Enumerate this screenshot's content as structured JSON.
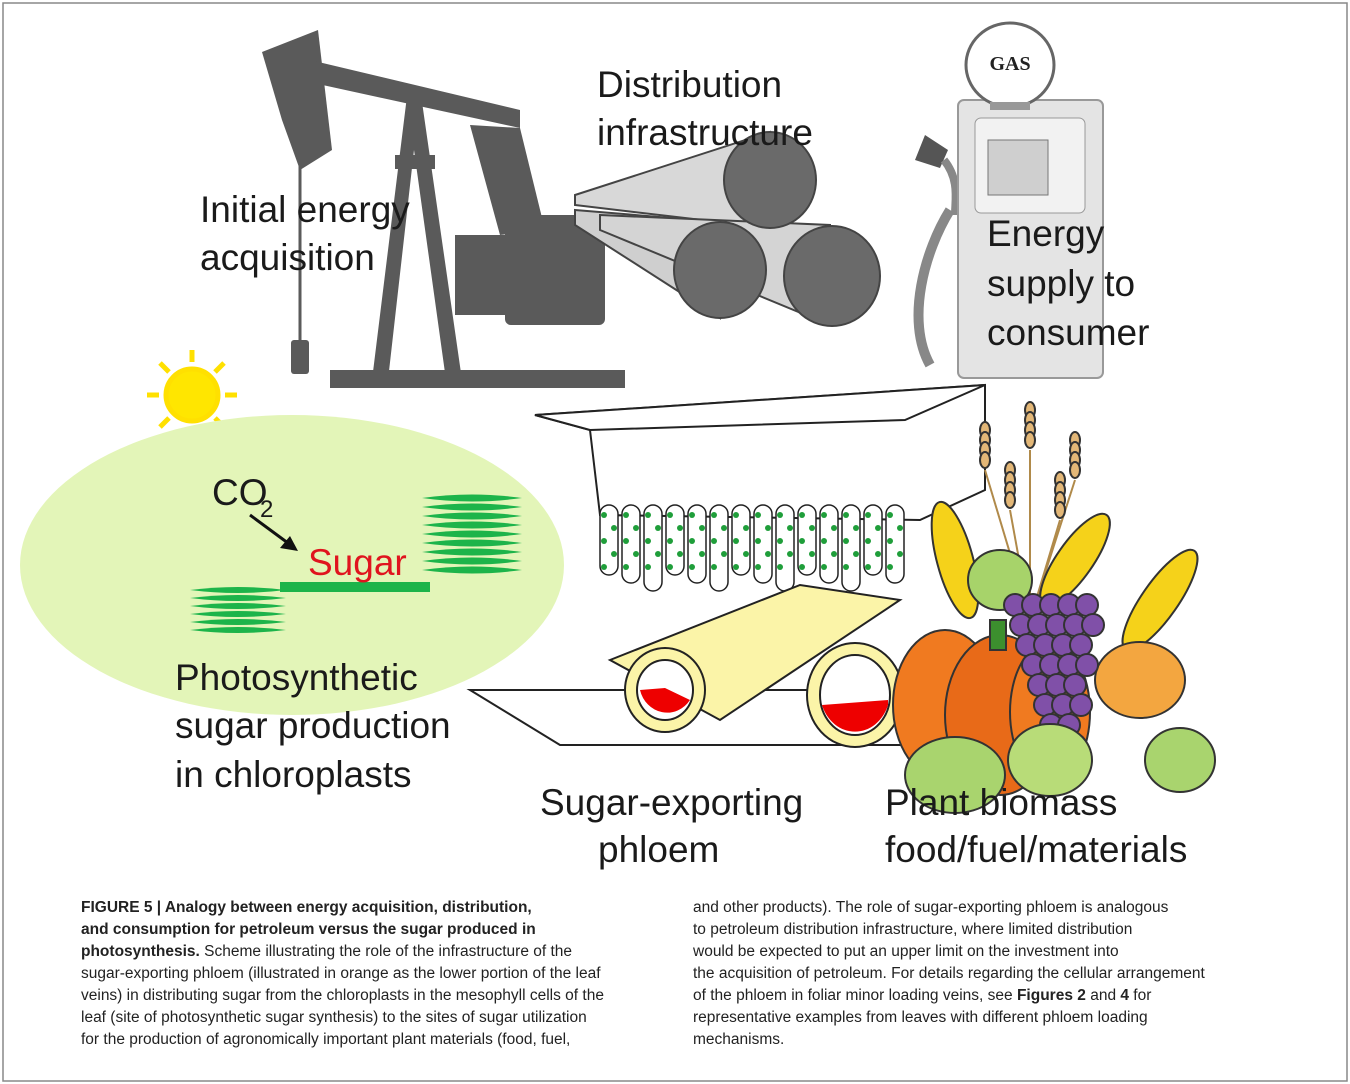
{
  "figure": {
    "gas_sign": "GAS",
    "distribution": [
      "Distribution",
      "infrastructure"
    ],
    "acquisition": [
      "Initial energy",
      "acquisition"
    ],
    "supply": [
      "Energy",
      "supply to",
      "consumer"
    ],
    "co2": {
      "main": "CO",
      "subscript": "2"
    },
    "sugar": "Sugar",
    "photosynthetic": [
      "Photosynthetic",
      "sugar production",
      "in chloroplasts"
    ],
    "phloem": [
      "Sugar-exporting",
      "phloem"
    ],
    "biomass": [
      "Plant biomass",
      "food/fuel/materials"
    ]
  },
  "caption": {
    "columns": [
      {
        "lines": [
          [
            {
              "text": "FIGURE 5 | Analogy between energy acquisition, distribution,",
              "bold": true
            }
          ],
          [
            {
              "text": "and consumption for petroleum versus the sugar produced in",
              "bold": true
            }
          ],
          [
            {
              "text": "photosynthesis.",
              "bold": true
            },
            {
              "text": " Scheme illustrating the role of the infrastructure of the",
              "bold": false
            }
          ],
          [
            {
              "text": "sugar-exporting phloem (illustrated in orange as the lower portion of the leaf",
              "bold": false
            }
          ],
          [
            {
              "text": "veins) in distributing sugar from the chloroplasts in the mesophyll cells of the",
              "bold": false
            }
          ],
          [
            {
              "text": "leaf (site of photosynthetic sugar synthesis) to the sites of sugar utilization",
              "bold": false
            }
          ],
          [
            {
              "text": "for the production of agronomically important plant materials (food, fuel,",
              "bold": false
            }
          ]
        ]
      },
      {
        "lines": [
          [
            {
              "text": "and other products). The role of sugar-exporting phloem is analogous",
              "bold": false
            }
          ],
          [
            {
              "text": "to petroleum distribution infrastructure, where limited distribution",
              "bold": false
            }
          ],
          [
            {
              "text": "would be expected to put an upper limit on the investment into",
              "bold": false
            }
          ],
          [
            {
              "text": "the acquisition of petroleum. For details regarding the cellular arrangement",
              "bold": false
            }
          ],
          [
            {
              "text": "of the phloem in foliar minor loading veins, see ",
              "bold": false
            },
            {
              "text": "Figures 2",
              "bold": true
            },
            {
              "text": " and ",
              "bold": false
            },
            {
              "text": "4",
              "bold": true
            },
            {
              "text": " for",
              "bold": false
            }
          ],
          [
            {
              "text": "representative examples from leaves with different phloem loading",
              "bold": false
            }
          ],
          [
            {
              "text": "mechanisms.",
              "bold": false
            }
          ]
        ]
      }
    ]
  }
}
